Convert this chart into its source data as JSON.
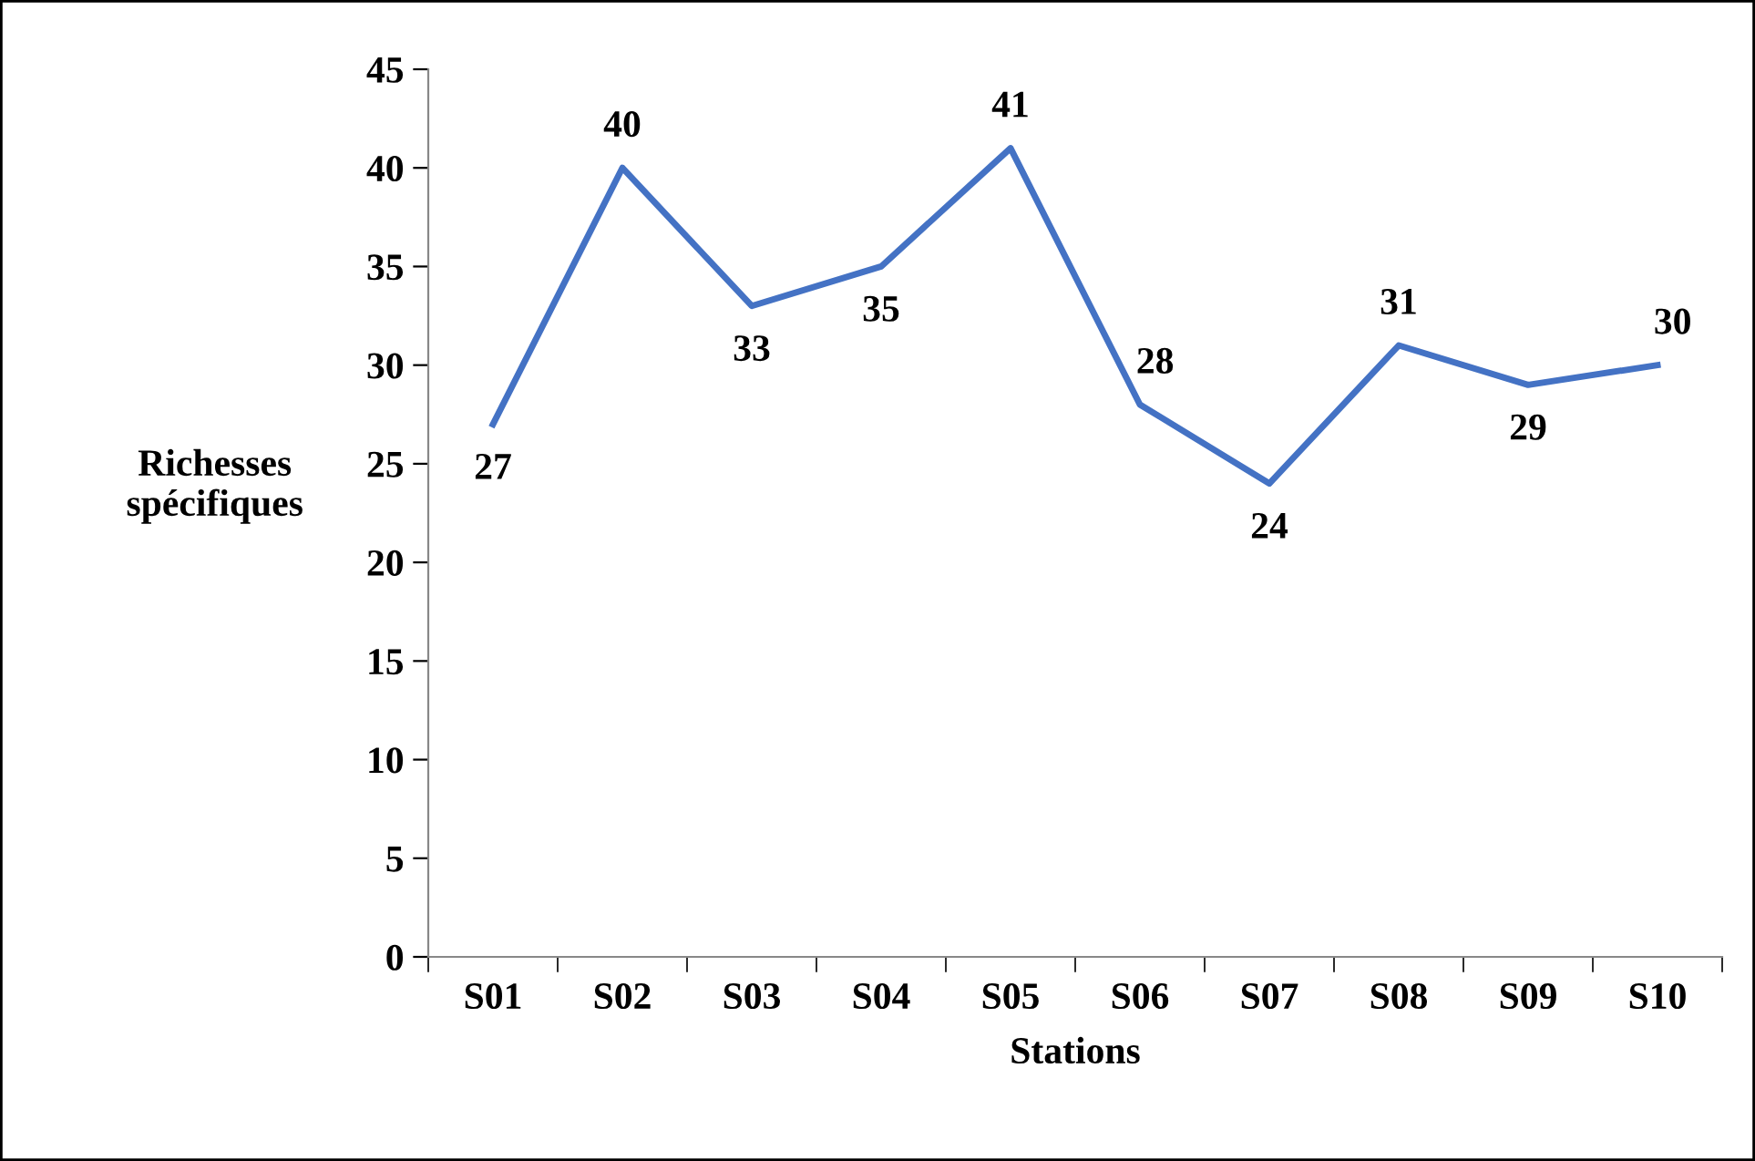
{
  "chart_data": {
    "type": "line",
    "xlabel": "Stations",
    "ylabel": "Richesses\nspécifiques",
    "categories": [
      "S01",
      "S02",
      "S03",
      "S04",
      "S05",
      "S06",
      "S07",
      "S08",
      "S09",
      "S10"
    ],
    "series": [
      {
        "color": "#4472c4",
        "values": [
          27,
          40,
          33,
          35,
          41,
          28,
          24,
          31,
          29,
          30
        ]
      }
    ],
    "ylim": [
      0,
      45
    ],
    "yticks": [
      0,
      5,
      10,
      15,
      20,
      25,
      30,
      35,
      40,
      45
    ],
    "data_labels": true,
    "grid": false,
    "marker": "none",
    "line_style": "solid"
  }
}
